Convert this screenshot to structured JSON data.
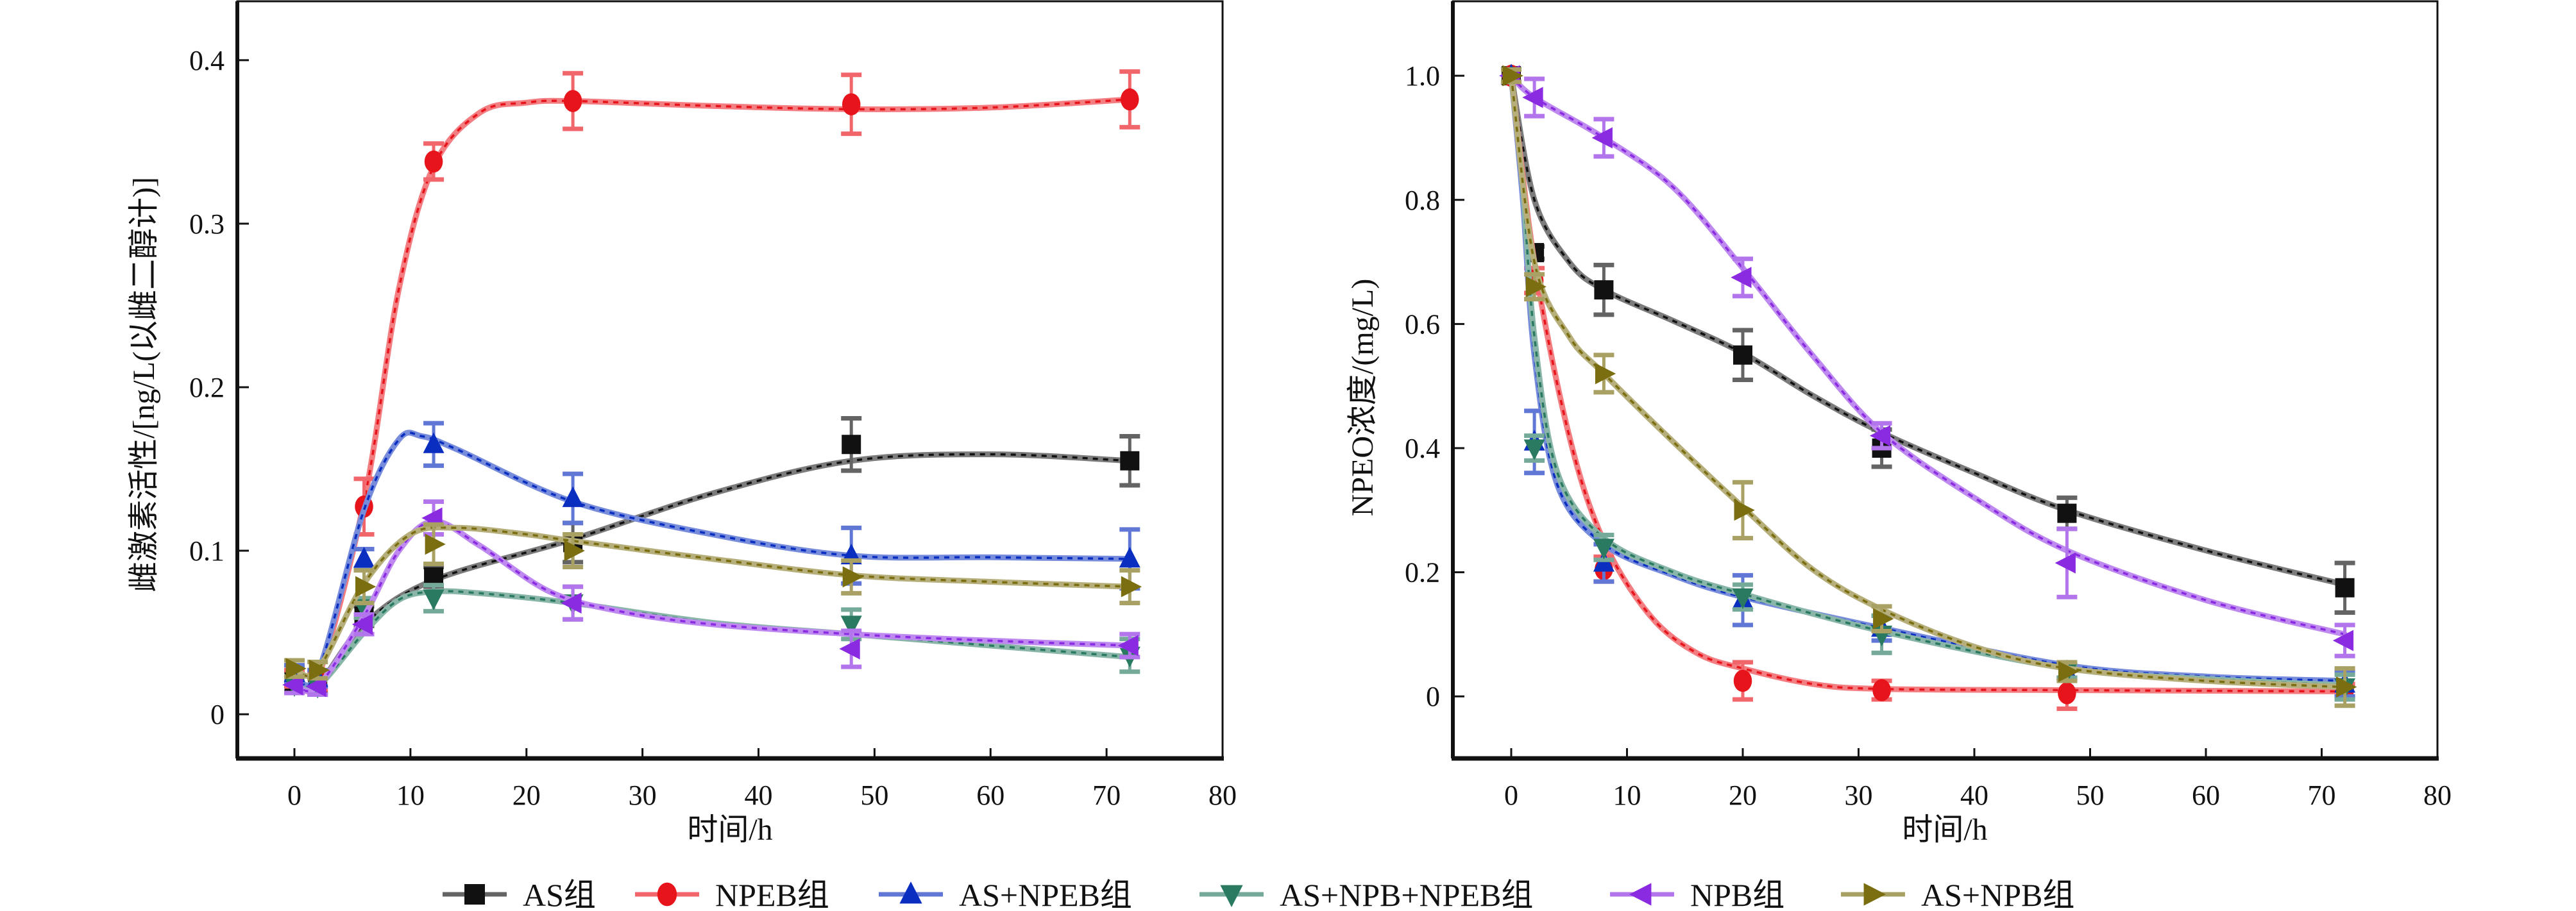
{
  "chart_data": [
    {
      "type": "line",
      "panel": "left",
      "title": "",
      "xlabel": "时间/h",
      "ylabel": "雌激素活性/[ng/L(以雌二醇计)]",
      "xlim": [
        -5,
        80
      ],
      "ylim": [
        -0.027,
        0.436
      ],
      "xticks": [
        0,
        10,
        20,
        30,
        40,
        50,
        60,
        70,
        80
      ],
      "xtick_labels": [
        "0",
        "10",
        "20",
        "30",
        "40",
        "50",
        "60",
        "70",
        "80"
      ],
      "yticks": [
        0,
        0.1,
        0.2,
        0.3,
        0.4
      ],
      "ytick_labels": [
        "0",
        "0.1",
        "0.2",
        "0.3",
        "0.4"
      ],
      "grid": false,
      "x": [
        0,
        2,
        6,
        12,
        24,
        48,
        72
      ],
      "series": [
        {
          "name": "AS组",
          "color": "#111111",
          "marker": "square",
          "values": [
            0.02,
            0.018,
            0.06,
            0.084,
            0.105,
            0.165,
            0.155
          ],
          "errors": [
            0.006,
            0.005,
            0.006,
            0.006,
            0.012,
            0.016,
            0.015
          ]
        },
        {
          "name": "NPEB组",
          "color": "#e8141c",
          "marker": "circle",
          "values": [
            0.022,
            0.02,
            0.127,
            0.338,
            0.375,
            0.373,
            0.376
          ],
          "errors": [
            0.005,
            0.005,
            0.017,
            0.011,
            0.017,
            0.018,
            0.017
          ]
        },
        {
          "name": "AS+NPEB组",
          "color": "#0a2ec0",
          "marker": "triangle-up",
          "values": [
            0.025,
            0.022,
            0.095,
            0.165,
            0.132,
            0.097,
            0.095
          ],
          "errors": [
            0.005,
            0.005,
            0.006,
            0.013,
            0.015,
            0.017,
            0.018
          ]
        },
        {
          "name": "AS+NPB+NPEB组",
          "color": "#2a7a62",
          "marker": "triangle-down",
          "values": [
            0.018,
            0.017,
            0.065,
            0.071,
            0.068,
            0.055,
            0.036
          ],
          "errors": [
            0.005,
            0.005,
            0.006,
            0.008,
            0.01,
            0.009,
            0.01
          ]
        },
        {
          "name": "NPB组",
          "color": "#8a2be2",
          "marker": "triangle-left",
          "values": [
            0.018,
            0.017,
            0.055,
            0.12,
            0.068,
            0.04,
            0.042
          ],
          "errors": [
            0.005,
            0.005,
            0.006,
            0.01,
            0.01,
            0.011,
            0.007
          ]
        },
        {
          "name": "AS+NPB组",
          "color": "#7a6e10",
          "marker": "triangle-right",
          "values": [
            0.028,
            0.027,
            0.078,
            0.104,
            0.1,
            0.084,
            0.078
          ],
          "errors": [
            0.005,
            0.005,
            0.01,
            0.012,
            0.01,
            0.01,
            0.01
          ]
        }
      ],
      "curves": {
        "AS组": [
          [
            0,
            0.02
          ],
          [
            2,
            0.018
          ],
          [
            6,
            0.055
          ],
          [
            12,
            0.082
          ],
          [
            24,
            0.107
          ],
          [
            36,
            0.135
          ],
          [
            48,
            0.155
          ],
          [
            60,
            0.159
          ],
          [
            72,
            0.155
          ]
        ],
        "NPEB组": [
          [
            0,
            0.022
          ],
          [
            2,
            0.022
          ],
          [
            6,
            0.13
          ],
          [
            9,
            0.26
          ],
          [
            12,
            0.335
          ],
          [
            16,
            0.368
          ],
          [
            20,
            0.374
          ],
          [
            24,
            0.375
          ],
          [
            36,
            0.372
          ],
          [
            48,
            0.37
          ],
          [
            60,
            0.371
          ],
          [
            72,
            0.376
          ]
        ],
        "AS+NPEB组": [
          [
            0,
            0.025
          ],
          [
            2,
            0.025
          ],
          [
            6,
            0.125
          ],
          [
            9,
            0.168
          ],
          [
            11,
            0.17
          ],
          [
            14,
            0.162
          ],
          [
            24,
            0.13
          ],
          [
            36,
            0.11
          ],
          [
            48,
            0.097
          ],
          [
            60,
            0.096
          ],
          [
            72,
            0.095
          ]
        ],
        "AS+NPB+NPEB组": [
          [
            0,
            0.018
          ],
          [
            2,
            0.017
          ],
          [
            6,
            0.05
          ],
          [
            9,
            0.07
          ],
          [
            12,
            0.075
          ],
          [
            16,
            0.074
          ],
          [
            24,
            0.068
          ],
          [
            36,
            0.056
          ],
          [
            48,
            0.049
          ],
          [
            60,
            0.042
          ],
          [
            72,
            0.035
          ]
        ],
        "NPB组": [
          [
            0,
            0.018
          ],
          [
            2,
            0.017
          ],
          [
            6,
            0.06
          ],
          [
            9,
            0.1
          ],
          [
            12,
            0.118
          ],
          [
            16,
            0.103
          ],
          [
            22,
            0.075
          ],
          [
            28,
            0.063
          ],
          [
            36,
            0.055
          ],
          [
            48,
            0.049
          ],
          [
            60,
            0.045
          ],
          [
            72,
            0.042
          ]
        ],
        "AS+NPB组": [
          [
            0,
            0.028
          ],
          [
            2,
            0.027
          ],
          [
            6,
            0.08
          ],
          [
            10,
            0.11
          ],
          [
            14,
            0.114
          ],
          [
            20,
            0.11
          ],
          [
            24,
            0.106
          ],
          [
            36,
            0.095
          ],
          [
            48,
            0.085
          ],
          [
            60,
            0.081
          ],
          [
            72,
            0.078
          ]
        ]
      }
    },
    {
      "type": "line",
      "panel": "right",
      "title": "",
      "xlabel": "时间/h",
      "ylabel": "NPEO浓度/(mg/L)",
      "xlim": [
        -5,
        80
      ],
      "ylim": [
        -0.1,
        1.12
      ],
      "xticks": [
        0,
        10,
        20,
        30,
        40,
        50,
        60,
        70,
        80
      ],
      "xtick_labels": [
        "0",
        "10",
        "20",
        "30",
        "40",
        "50",
        "60",
        "70",
        "80"
      ],
      "yticks": [
        0,
        0.2,
        0.4,
        0.6,
        0.8,
        1.0
      ],
      "ytick_labels": [
        "0",
        "0.2",
        "0.4",
        "0.6",
        "0.8",
        "1.0"
      ],
      "grid": false,
      "x": [
        0,
        2,
        8,
        20,
        32,
        48,
        72
      ],
      "series": [
        {
          "name": "AS组",
          "color": "#111111",
          "marker": "square",
          "values": [
            1.0,
            0.715,
            0.655,
            0.55,
            0.4,
            0.295,
            0.175
          ],
          "errors": [
            0.01,
            0.01,
            0.04,
            0.04,
            0.03,
            0.025,
            0.04
          ]
        },
        {
          "name": "NPEB组",
          "color": "#e8141c",
          "marker": "circle",
          "values": [
            1.0,
            0.67,
            0.205,
            0.025,
            0.01,
            0.005,
            0.01
          ],
          "errors": [
            0.01,
            0.02,
            0.02,
            0.03,
            0.015,
            0.025,
            0.01
          ]
        },
        {
          "name": "AS+NPEB组",
          "color": "#0a2ec0",
          "marker": "triangle-up",
          "values": [
            1.0,
            0.41,
            0.215,
            0.155,
            0.11,
            0.04,
            0.02
          ],
          "errors": [
            0.01,
            0.05,
            0.03,
            0.04,
            0.02,
            0.01,
            0.02
          ]
        },
        {
          "name": "AS+NPB+NPEB组",
          "color": "#2a7a62",
          "marker": "triangle-down",
          "values": [
            1.0,
            0.4,
            0.24,
            0.16,
            0.1,
            0.04,
            0.015
          ],
          "errors": [
            0.01,
            0.02,
            0.02,
            0.02,
            0.03,
            0.01,
            0.02
          ]
        },
        {
          "name": "NPB组",
          "color": "#8a2be2",
          "marker": "triangle-left",
          "values": [
            1.0,
            0.965,
            0.9,
            0.675,
            0.42,
            0.215,
            0.09
          ],
          "errors": [
            0.01,
            0.03,
            0.03,
            0.03,
            0.02,
            0.055,
            0.025
          ]
        },
        {
          "name": "AS+NPB组",
          "color": "#7a6e10",
          "marker": "triangle-right",
          "values": [
            1.0,
            0.66,
            0.52,
            0.3,
            0.125,
            0.04,
            0.015
          ],
          "errors": [
            0.01,
            0.02,
            0.03,
            0.045,
            0.02,
            0.015,
            0.03
          ]
        }
      ],
      "curves": {
        "AS组": [
          [
            0,
            1.0
          ],
          [
            2,
            0.8
          ],
          [
            5,
            0.7
          ],
          [
            8,
            0.655
          ],
          [
            14,
            0.605
          ],
          [
            20,
            0.553
          ],
          [
            26,
            0.485
          ],
          [
            32,
            0.425
          ],
          [
            40,
            0.36
          ],
          [
            48,
            0.3
          ],
          [
            60,
            0.235
          ],
          [
            72,
            0.18
          ]
        ],
        "NPEB组": [
          [
            0,
            1.0
          ],
          [
            2,
            0.7
          ],
          [
            5,
            0.42
          ],
          [
            8,
            0.25
          ],
          [
            12,
            0.13
          ],
          [
            16,
            0.07
          ],
          [
            20,
            0.045
          ],
          [
            26,
            0.02
          ],
          [
            32,
            0.012
          ],
          [
            48,
            0.01
          ],
          [
            72,
            0.008
          ]
        ],
        "AS+NPEB组": [
          [
            0,
            1.0
          ],
          [
            1,
            0.8
          ],
          [
            2,
            0.55
          ],
          [
            4,
            0.34
          ],
          [
            8,
            0.245
          ],
          [
            14,
            0.195
          ],
          [
            20,
            0.16
          ],
          [
            32,
            0.11
          ],
          [
            48,
            0.05
          ],
          [
            60,
            0.032
          ],
          [
            72,
            0.025
          ]
        ],
        "AS+NPB+NPEB组": [
          [
            0,
            1.0
          ],
          [
            1,
            0.82
          ],
          [
            2,
            0.58
          ],
          [
            4,
            0.36
          ],
          [
            8,
            0.255
          ],
          [
            14,
            0.2
          ],
          [
            20,
            0.165
          ],
          [
            32,
            0.105
          ],
          [
            48,
            0.045
          ],
          [
            60,
            0.028
          ],
          [
            72,
            0.018
          ]
        ],
        "NPB组": [
          [
            0,
            1.0
          ],
          [
            2,
            0.965
          ],
          [
            8,
            0.9
          ],
          [
            14,
            0.82
          ],
          [
            20,
            0.69
          ],
          [
            26,
            0.55
          ],
          [
            32,
            0.425
          ],
          [
            40,
            0.32
          ],
          [
            48,
            0.235
          ],
          [
            60,
            0.155
          ],
          [
            72,
            0.1
          ]
        ],
        "AS+NPB组": [
          [
            0,
            1.0
          ],
          [
            2,
            0.7
          ],
          [
            5,
            0.58
          ],
          [
            8,
            0.52
          ],
          [
            14,
            0.41
          ],
          [
            20,
            0.305
          ],
          [
            26,
            0.205
          ],
          [
            32,
            0.14
          ],
          [
            40,
            0.08
          ],
          [
            48,
            0.045
          ],
          [
            60,
            0.025
          ],
          [
            72,
            0.015
          ]
        ]
      }
    }
  ],
  "legend": {
    "placement": "bottom-center",
    "items": [
      {
        "label": "AS组",
        "color": "#111111",
        "marker": "square"
      },
      {
        "label": "NPEB组",
        "color": "#e8141c",
        "marker": "circle"
      },
      {
        "label": "AS+NPEB组",
        "color": "#0a2ec0",
        "marker": "triangle-up"
      },
      {
        "label": "AS+NPB+NPEB组",
        "color": "#2a7a62",
        "marker": "triangle-down"
      },
      {
        "label": "NPB组",
        "color": "#8a2be2",
        "marker": "triangle-left"
      },
      {
        "label": "AS+NPB组",
        "color": "#7a6e10",
        "marker": "triangle-right"
      }
    ]
  }
}
